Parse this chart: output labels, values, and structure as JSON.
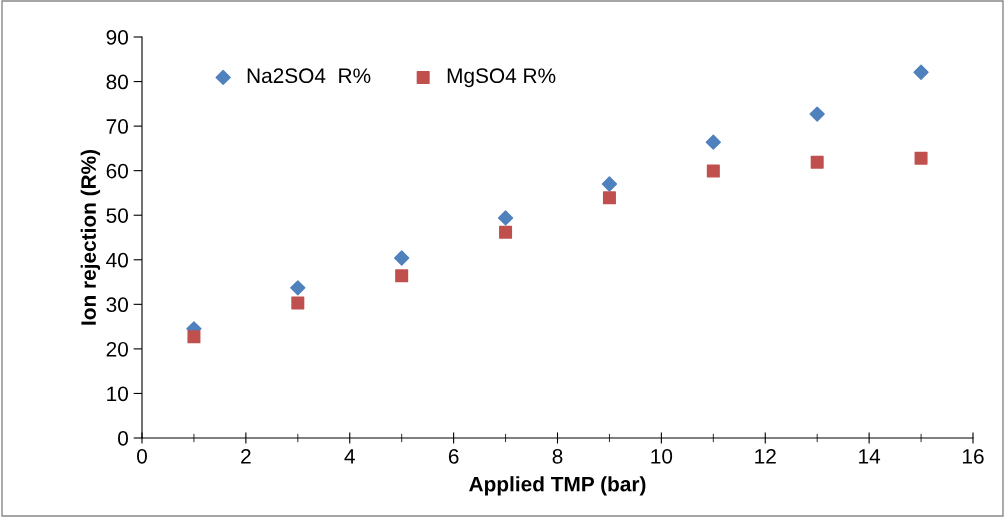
{
  "chart_data": {
    "type": "scatter",
    "xlabel": "Applied TMP (bar)",
    "ylabel": "Ion rejection (R%)",
    "xlim": [
      0,
      16
    ],
    "xticks": [
      0,
      2,
      4,
      6,
      8,
      10,
      12,
      14,
      16
    ],
    "ylim": [
      0,
      90
    ],
    "yticks": [
      0,
      10,
      20,
      30,
      40,
      50,
      60,
      70,
      80,
      90
    ],
    "x": [
      1,
      3,
      5,
      7,
      9,
      11,
      13,
      15
    ],
    "grid": false,
    "legend": "top left",
    "series": [
      {
        "name": "Na2SO4  R%",
        "color": "#4f81bd",
        "marker": "diamond",
        "values": [
          24.5,
          33.7,
          40.4,
          49.4,
          57.0,
          66.4,
          72.7,
          82.1
        ]
      },
      {
        "name": "MgSO4 R%",
        "color": "#c0504d",
        "marker": "square",
        "values": [
          22.7,
          30.3,
          36.4,
          46.2,
          53.9,
          59.9,
          61.9,
          62.8
        ]
      }
    ]
  }
}
